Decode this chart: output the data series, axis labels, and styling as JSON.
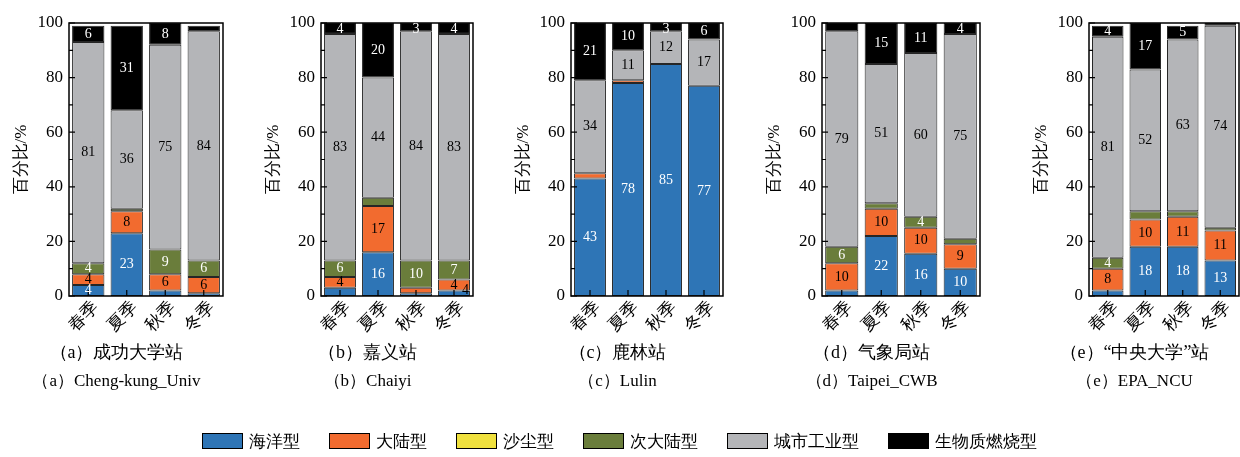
{
  "chart_data": [
    {
      "type": "bar",
      "stacked": true,
      "title": "（a）成功大学站",
      "subtitle": "（a）Cheng-kung_Univ",
      "ylabel": "百分比/%",
      "categories": [
        "春季",
        "夏季",
        "秋季",
        "冬季"
      ],
      "ylim": [
        0,
        100
      ],
      "yticks": [
        0,
        {
          "value": 10,
          "label": null
        },
        20,
        {
          "value": 30,
          "label": null
        },
        40,
        {
          "value": 50,
          "label": null
        },
        60,
        {
          "value": 70,
          "label": null
        },
        80,
        {
          "value": 90,
          "label": null
        },
        100
      ],
      "legend": "bottom",
      "series": [
        {
          "name": "海洋型",
          "color": "#2e75b6",
          "values": [
            4,
            23,
            2,
            1
          ],
          "value_labels": [
            "4",
            "23",
            null,
            null
          ]
        },
        {
          "name": "大陆型",
          "color": "#f26b2f",
          "values": [
            4,
            8,
            6,
            6
          ],
          "value_labels": [
            "4",
            "8",
            "6",
            "6"
          ]
        },
        {
          "name": "沙尘型",
          "color": "#f0e13e",
          "values": [
            0,
            0,
            0,
            0
          ]
        },
        {
          "name": "次大陆型",
          "color": "#6a7d3b",
          "values": [
            4,
            1,
            9,
            6
          ],
          "value_labels": [
            "4",
            null,
            "9",
            "6"
          ]
        },
        {
          "name": "城市工业型",
          "color": "#b4b5b8",
          "values": [
            81,
            36,
            75,
            84
          ],
          "value_labels": [
            "81",
            "36",
            "75",
            "84"
          ]
        },
        {
          "name": "生物质燃烧型",
          "color": "#000000",
          "values": [
            6,
            31,
            8,
            2
          ],
          "value_labels": [
            "6",
            "31",
            "8",
            null
          ]
        }
      ]
    },
    {
      "type": "bar",
      "stacked": true,
      "title": "（b）嘉义站",
      "subtitle": "（b）Chaiyi",
      "ylabel": "百分比/%",
      "categories": [
        "春季",
        "夏季",
        "秋季",
        "冬季"
      ],
      "ylim": [
        0,
        100
      ],
      "yticks": [
        0,
        {
          "value": 10,
          "label": null
        },
        20,
        {
          "value": 30,
          "label": null
        },
        40,
        {
          "value": 50,
          "label": null
        },
        60,
        {
          "value": 70,
          "label": null
        },
        80,
        {
          "value": 90,
          "label": null
        },
        100
      ],
      "annotations": [
        {
          "text": "4",
          "x": "冬季",
          "y": 2
        }
      ],
      "series": [
        {
          "name": "海洋型",
          "color": "#2e75b6",
          "values": [
            3,
            16,
            1,
            2
          ],
          "value_labels": [
            null,
            "16",
            null,
            null
          ]
        },
        {
          "name": "大陆型",
          "color": "#f26b2f",
          "values": [
            4,
            17,
            2,
            4
          ],
          "value_labels": [
            "4",
            "17",
            null,
            "4"
          ]
        },
        {
          "name": "次大陆型",
          "color": "#6a7d3b",
          "values": [
            6,
            3,
            10,
            7
          ],
          "value_labels": [
            "6",
            null,
            "10",
            "7"
          ]
        },
        {
          "name": "城市工业型",
          "color": "#b4b5b8",
          "values": [
            83,
            44,
            84,
            83
          ],
          "value_labels": [
            "83",
            "44",
            "84",
            "83"
          ]
        },
        {
          "name": "生物质燃烧型",
          "color": "#000000",
          "values": [
            4,
            20,
            3,
            4
          ],
          "value_labels": [
            "4",
            "20",
            "3",
            "4"
          ]
        }
      ]
    },
    {
      "type": "bar",
      "stacked": true,
      "title": "（c）鹿林站",
      "subtitle": "（c）Lulin",
      "ylabel": "百分比/%",
      "categories": [
        "春季",
        "夏季",
        "秋季",
        "冬季"
      ],
      "ylim": [
        0,
        100
      ],
      "yticks": [
        0,
        {
          "value": 10,
          "label": null
        },
        20,
        {
          "value": 30,
          "label": null
        },
        40,
        {
          "value": 50,
          "label": null
        },
        60,
        {
          "value": 70,
          "label": null
        },
        80,
        {
          "value": 90,
          "label": null
        },
        100
      ],
      "series": [
        {
          "name": "海洋型",
          "color": "#2e75b6",
          "values": [
            43,
            78,
            85,
            77
          ],
          "value_labels": [
            "43",
            "78",
            "85",
            "77"
          ]
        },
        {
          "name": "大陆型",
          "color": "#f26b2f",
          "values": [
            2,
            1,
            0,
            0
          ]
        },
        {
          "name": "城市工业型",
          "color": "#b4b5b8",
          "values": [
            34,
            11,
            12,
            17
          ],
          "value_labels": [
            "34",
            "11",
            "12",
            "17"
          ]
        },
        {
          "name": "生物质燃烧型",
          "color": "#000000",
          "values": [
            21,
            10,
            3,
            6
          ],
          "value_labels": [
            "21",
            "10",
            "3",
            "6"
          ]
        }
      ]
    },
    {
      "type": "bar",
      "stacked": true,
      "title": "（d）气象局站",
      "subtitle": "（d）Taipei_CWB",
      "ylabel": "百分比/%",
      "categories": [
        "春季",
        "夏季",
        "秋季",
        "冬季"
      ],
      "ylim": [
        0,
        100
      ],
      "yticks": [
        0,
        {
          "value": 10,
          "label": null
        },
        20,
        {
          "value": 30,
          "label": null
        },
        40,
        {
          "value": 50,
          "label": null
        },
        60,
        {
          "value": 70,
          "label": null
        },
        80,
        {
          "value": 90,
          "label": null
        },
        100
      ],
      "series": [
        {
          "name": "海洋型",
          "color": "#2e75b6",
          "values": [
            2,
            22,
            15.5,
            10
          ],
          "value_labels": [
            null,
            "22",
            "16",
            "10"
          ]
        },
        {
          "name": "大陆型",
          "color": "#f26b2f",
          "values": [
            10,
            10,
            9.5,
            9
          ],
          "value_labels": [
            "10",
            "10",
            "10",
            "9"
          ]
        },
        {
          "name": "次大陆型",
          "color": "#6a7d3b",
          "values": [
            6,
            2,
            4,
            2
          ],
          "value_labels": [
            "6",
            null,
            "4",
            null
          ]
        },
        {
          "name": "城市工业型",
          "color": "#b4b5b8",
          "values": [
            79,
            51,
            60,
            75
          ],
          "value_labels": [
            "79",
            "51",
            "60",
            "75"
          ]
        },
        {
          "name": "生物质燃烧型",
          "color": "#000000",
          "values": [
            3,
            15,
            11,
            4
          ],
          "value_labels": [
            null,
            "15",
            "11",
            "4"
          ]
        }
      ]
    },
    {
      "type": "bar",
      "stacked": true,
      "title": "（e）“中央大学”站",
      "subtitle": "（e）EPA_NCU",
      "ylabel": "百分比/%",
      "categories": [
        "春季",
        "夏季",
        "秋季",
        "冬季"
      ],
      "ylim": [
        0,
        100
      ],
      "yticks": [
        0,
        {
          "value": 10,
          "label": null
        },
        20,
        {
          "value": 30,
          "label": null
        },
        40,
        {
          "value": 50,
          "label": null
        },
        60,
        {
          "value": 70,
          "label": null
        },
        80,
        {
          "value": 90,
          "label": null
        },
        100
      ],
      "series": [
        {
          "name": "海洋型",
          "color": "#2e75b6",
          "values": [
            2,
            18,
            18,
            13
          ],
          "value_labels": [
            null,
            "18",
            "18",
            "13"
          ]
        },
        {
          "name": "大陆型",
          "color": "#f26b2f",
          "values": [
            8,
            10,
            11,
            11
          ],
          "value_labels": [
            "8",
            "10",
            "11",
            "11"
          ]
        },
        {
          "name": "次大陆型",
          "color": "#6a7d3b",
          "values": [
            4,
            3,
            2,
            1
          ],
          "value_labels": [
            "4",
            null,
            null,
            null
          ]
        },
        {
          "name": "城市工业型",
          "color": "#b4b5b8",
          "values": [
            81,
            52,
            63,
            74
          ],
          "value_labels": [
            "81",
            "52",
            "63",
            "74"
          ]
        },
        {
          "name": "生物质燃烧型",
          "color": "#000000",
          "values": [
            4,
            17,
            5,
            1
          ],
          "value_labels": [
            "4",
            "17",
            "5",
            null
          ]
        }
      ]
    }
  ]
}
